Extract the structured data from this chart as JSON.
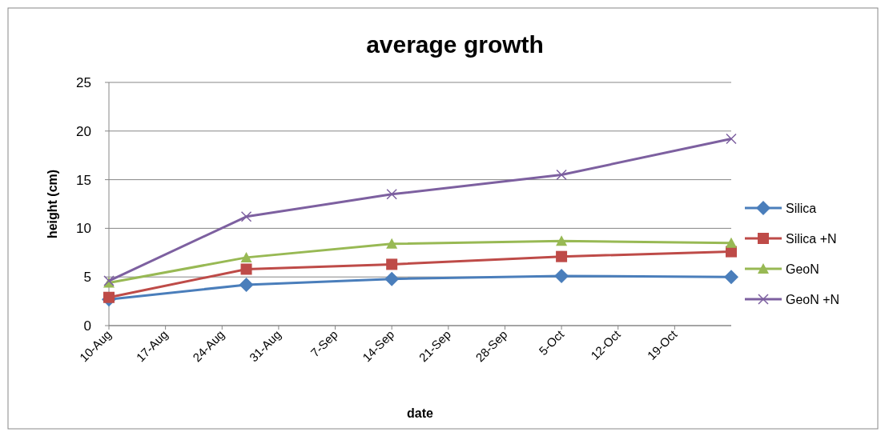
{
  "chart_data": {
    "type": "line",
    "title": "average growth",
    "xlabel": "date",
    "ylabel": "height (cm)",
    "x": [
      "--08-10",
      "--08-27",
      "--09-14",
      "--10-05",
      "--10-26"
    ],
    "xlim": [
      "--08-10",
      "--10-26"
    ],
    "xticks": [
      {
        "value": "--08-10",
        "label": "10-Aug"
      },
      {
        "value": "--08-17",
        "label": "17-Aug"
      },
      {
        "value": "--08-24",
        "label": "24-Aug"
      },
      {
        "value": "--08-31",
        "label": "31-Aug"
      },
      {
        "value": "--09-07",
        "label": "7-Sep"
      },
      {
        "value": "--09-14",
        "label": "14-Sep"
      },
      {
        "value": "--09-21",
        "label": "21-Sep"
      },
      {
        "value": "--09-28",
        "label": "28-Sep"
      },
      {
        "value": "--10-05",
        "label": "5-Oct"
      },
      {
        "value": "--10-12",
        "label": "12-Oct"
      },
      {
        "value": "--10-19",
        "label": "19-Oct"
      }
    ],
    "ylim": [
      0,
      25
    ],
    "yticks": [
      0,
      5,
      10,
      15,
      20,
      25
    ],
    "grid": "y",
    "legend": "right",
    "series": [
      {
        "name": "Silica",
        "color": "#4a7ebb",
        "marker": "diamond",
        "values": [
          2.7,
          4.2,
          4.8,
          5.1,
          5.0
        ]
      },
      {
        "name": "Silica +N",
        "color": "#be4b48",
        "marker": "square",
        "values": [
          2.9,
          5.8,
          6.3,
          7.1,
          7.6
        ]
      },
      {
        "name": "GeoN",
        "color": "#98b954",
        "marker": "triangle",
        "values": [
          4.4,
          7.0,
          8.4,
          8.7,
          8.5
        ]
      },
      {
        "name": "GeoN +N",
        "color": "#7d60a0",
        "marker": "cross",
        "values": [
          4.6,
          11.2,
          13.5,
          15.5,
          19.2
        ]
      }
    ]
  }
}
